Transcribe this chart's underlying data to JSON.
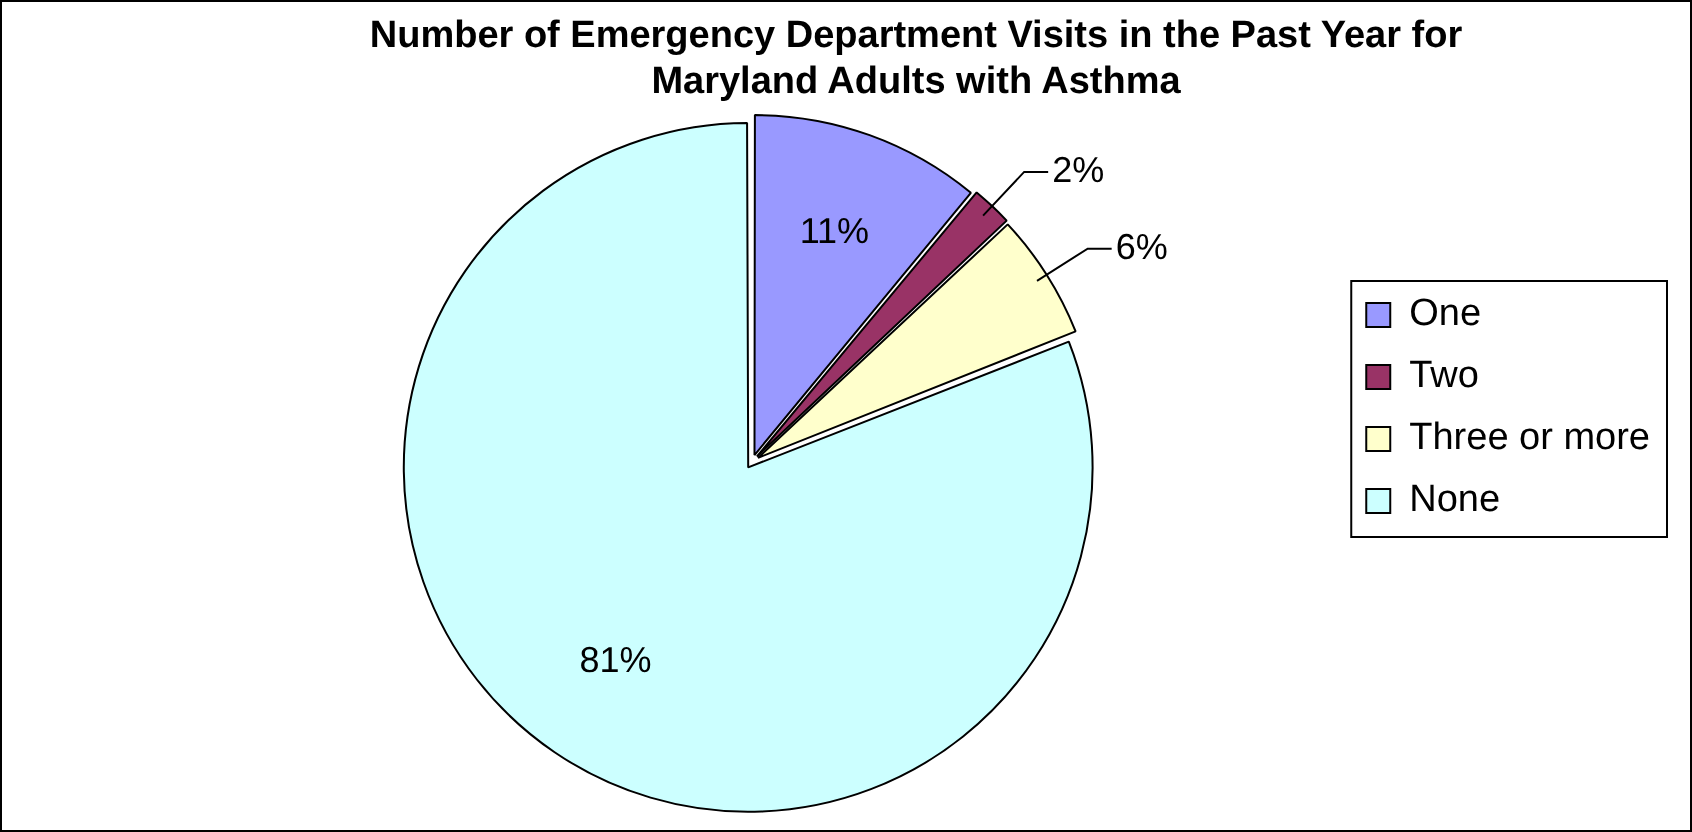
{
  "chart_data": {
    "type": "pie",
    "title": "Number of Emergency Department Visits in the Past Year for Maryland Adults with Asthma",
    "categories": [
      "One",
      "Two",
      "Three or more",
      "None"
    ],
    "values": [
      11,
      2,
      6,
      81
    ],
    "colors": [
      "#9999ff",
      "#993366",
      "#ffffcc",
      "#ccffff"
    ],
    "value_labels": [
      "11%",
      "2%",
      "6%",
      "81%"
    ],
    "legend": "right"
  }
}
